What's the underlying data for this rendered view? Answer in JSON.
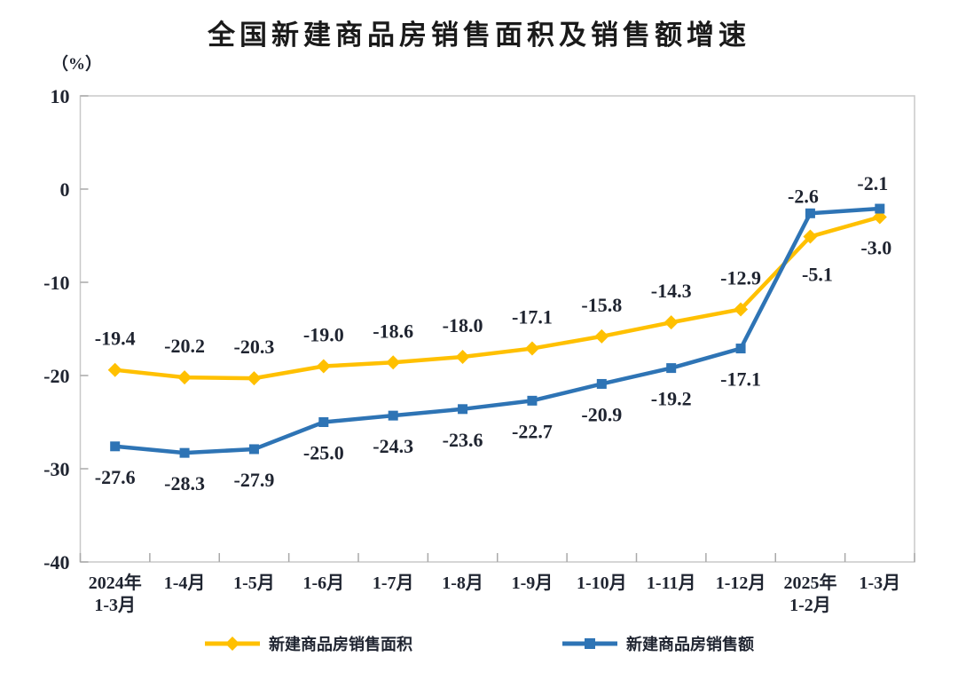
{
  "chart_data": {
    "type": "line",
    "title": "全国新建商品房销售面积及销售额增速",
    "unit_label": "（%）",
    "categories": [
      "2024年\n1-3月",
      "1-4月",
      "1-5月",
      "1-6月",
      "1-7月",
      "1-8月",
      "1-9月",
      "1-10月",
      "1-11月",
      "1-12月",
      "2025年\n1-2月",
      "1-3月"
    ],
    "series": [
      {
        "name": "新建商品房销售面积",
        "color": "#FFC000",
        "marker": "diamond",
        "values": [
          -19.4,
          -20.2,
          -20.3,
          -19.0,
          -18.6,
          -18.0,
          -17.1,
          -15.8,
          -14.3,
          -12.9,
          -5.1,
          -3.0
        ],
        "label_default": "above",
        "label_overrides": {
          "10": [
            8,
            50
          ],
          "11": [
            -4,
            42
          ]
        }
      },
      {
        "name": "新建商品房销售额",
        "color": "#2E74B5",
        "marker": "square",
        "values": [
          -27.6,
          -28.3,
          -27.9,
          -25.0,
          -24.3,
          -23.6,
          -22.7,
          -20.9,
          -19.2,
          -17.1,
          -2.6,
          -2.1
        ],
        "label_default": "below",
        "label_overrides": {
          "10": [
            -8,
            -12
          ],
          "11": [
            -8,
            -21
          ]
        }
      }
    ],
    "ylim": [
      -40,
      10
    ],
    "yticks": [
      10,
      0,
      -10,
      -20,
      -30,
      -40
    ],
    "grid": false,
    "legend_position": "bottom",
    "axis_color": "#c8c8c8",
    "tick_color": "#a9a9a9",
    "label_color": "#1f2430"
  }
}
